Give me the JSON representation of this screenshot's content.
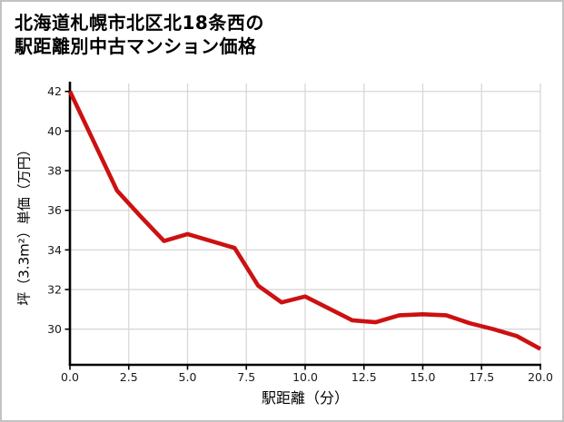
{
  "figure": {
    "title_line1": "北海道札幌市北区北18条西の",
    "title_line2": "駅距離別中古マンション価格"
  },
  "chart_data": {
    "type": "line",
    "title": "北海道札幌市北区北18条西の駅距離別中古マンション価格",
    "xlabel": "駅距離（分）",
    "ylabel": "坪（3.3m²）単価（万円）",
    "x": [
      0,
      1,
      2,
      3,
      4,
      5,
      6,
      7,
      8,
      9,
      10,
      11,
      12,
      13,
      14,
      15,
      16,
      17,
      18,
      19,
      20
    ],
    "values": [
      42.0,
      39.5,
      37.0,
      35.7,
      34.45,
      34.8,
      34.45,
      34.1,
      32.2,
      31.35,
      31.65,
      31.05,
      30.45,
      30.35,
      30.7,
      30.75,
      30.7,
      30.3,
      30.0,
      29.65,
      29.0
    ],
    "xlim": [
      0,
      20
    ],
    "ylim": [
      28.2,
      42.4
    ],
    "x_ticks": [
      0,
      2.5,
      5,
      7.5,
      10,
      12.5,
      15,
      17.5,
      20
    ],
    "x_tick_labels": [
      "0.0",
      "2.5",
      "5.0",
      "7.5",
      "10.0",
      "12.5",
      "15.0",
      "17.5",
      "20.0"
    ],
    "y_ticks": [
      30,
      32,
      34,
      36,
      38,
      40,
      42
    ],
    "grid": true,
    "legend": "none",
    "line_color": "#cc1111",
    "grid_color": "#d8d8d8",
    "axis_color": "#000000",
    "text_color": "#1a1a1a"
  }
}
